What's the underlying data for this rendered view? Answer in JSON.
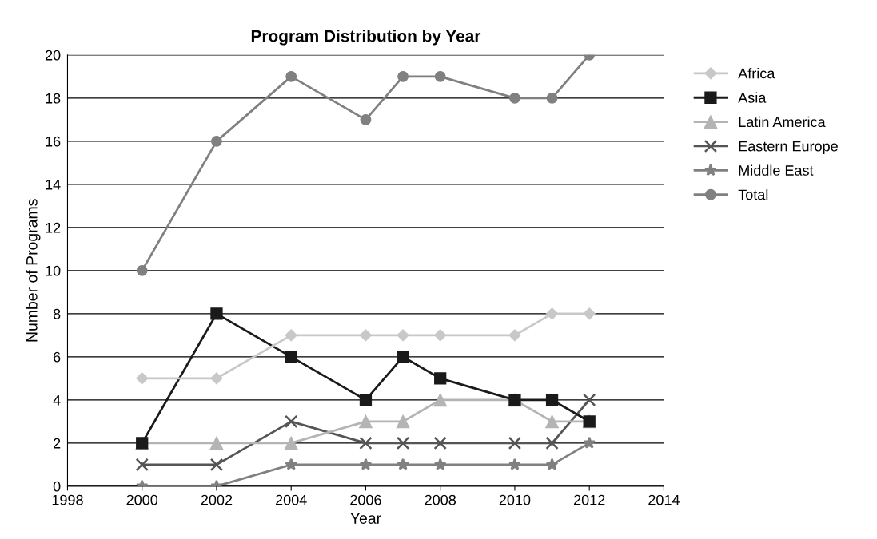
{
  "chart_data": {
    "type": "line",
    "title": "Program Distribution by Year",
    "xlabel": "Year",
    "ylabel": "Number of Programs",
    "x": [
      2000,
      2002,
      2004,
      2006,
      2007,
      2008,
      2010,
      2011,
      2012
    ],
    "series": [
      {
        "name": "Africa",
        "color": "#c8c8c8",
        "marker": "diamond",
        "values": [
          5,
          5,
          7,
          7,
          7,
          7,
          7,
          8,
          8
        ]
      },
      {
        "name": "Asia",
        "color": "#1a1a1a",
        "marker": "square",
        "values": [
          2,
          8,
          6,
          4,
          6,
          5,
          4,
          4,
          3
        ]
      },
      {
        "name": "Latin America",
        "color": "#b4b4b4",
        "marker": "triangle",
        "values": [
          2,
          2,
          2,
          3,
          3,
          4,
          4,
          3,
          3
        ]
      },
      {
        "name": "Eastern Europe",
        "color": "#555555",
        "marker": "cross",
        "values": [
          1,
          1,
          3,
          2,
          2,
          2,
          2,
          2,
          4
        ]
      },
      {
        "name": "Middle East",
        "color": "#808080",
        "marker": "star",
        "values": [
          0,
          0,
          1,
          1,
          1,
          1,
          1,
          1,
          2
        ]
      },
      {
        "name": "Total",
        "color": "#808080",
        "marker": "circle",
        "values": [
          10,
          16,
          19,
          17,
          19,
          19,
          18,
          18,
          20
        ]
      }
    ],
    "xlim": [
      1998,
      2014
    ],
    "xticks": [
      1998,
      2000,
      2002,
      2004,
      2006,
      2008,
      2010,
      2012,
      2014
    ],
    "ylim": [
      0,
      20
    ],
    "yticks": [
      0,
      2,
      4,
      6,
      8,
      10,
      12,
      14,
      16,
      18,
      20
    ],
    "grid": "y",
    "legend": "right",
    "line_style": "solid"
  }
}
